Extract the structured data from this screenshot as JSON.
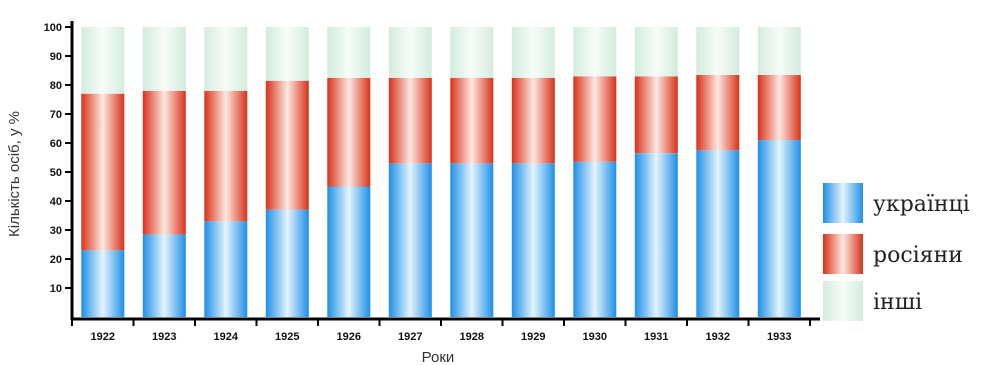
{
  "chart_data": {
    "type": "bar",
    "stacked": true,
    "title": "",
    "xlabel": "Роки",
    "ylabel": "Кількість осіб, у %",
    "ylim": [
      0,
      100
    ],
    "yticks": [
      10,
      20,
      30,
      40,
      50,
      60,
      70,
      80,
      90,
      100
    ],
    "categories": [
      "1922",
      "1923",
      "1924",
      "1925",
      "1926",
      "1927",
      "1928",
      "1929",
      "1930",
      "1931",
      "1932",
      "1933"
    ],
    "series": [
      {
        "name": "українці",
        "color": "#2e9be8",
        "values": [
          23,
          28.5,
          33,
          37,
          45,
          53,
          53,
          53,
          53.5,
          56.5,
          57.5,
          61
        ]
      },
      {
        "name": "росіяни",
        "color": "#dd3b1e",
        "values": [
          54,
          49.5,
          45,
          44.5,
          37.5,
          29.5,
          29.5,
          29.5,
          29.5,
          26.5,
          26,
          22.5
        ]
      },
      {
        "name": "інші",
        "color": "#d9efe1",
        "values": [
          23,
          22,
          22,
          18.5,
          17.5,
          17.5,
          17.5,
          17.5,
          17,
          17,
          16.5,
          16.5
        ]
      }
    ],
    "grid": false,
    "legend": "right"
  }
}
